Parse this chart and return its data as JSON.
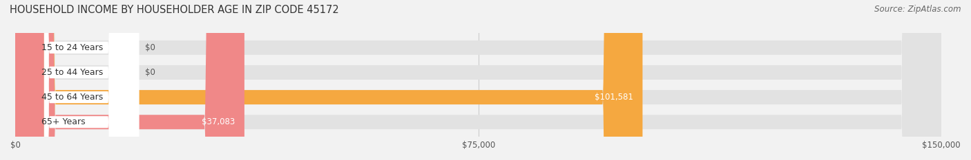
{
  "title": "HOUSEHOLD INCOME BY HOUSEHOLDER AGE IN ZIP CODE 45172",
  "source": "Source: ZipAtlas.com",
  "categories": [
    "15 to 24 Years",
    "25 to 44 Years",
    "45 to 64 Years",
    "65+ Years"
  ],
  "values": [
    0,
    0,
    101581,
    37083
  ],
  "bar_colors": [
    "#a8a8d8",
    "#f0a0b8",
    "#f5a840",
    "#f08888"
  ],
  "value_labels": [
    "$0",
    "$0",
    "$101,581",
    "$37,083"
  ],
  "xlim": [
    0,
    150000
  ],
  "xticks": [
    0,
    75000,
    150000
  ],
  "xtick_labels": [
    "$0",
    "$75,000",
    "$150,000"
  ],
  "background_color": "#f2f2f2",
  "bar_background_color": "#e2e2e2",
  "title_fontsize": 10.5,
  "source_fontsize": 8.5,
  "bar_height": 0.58,
  "label_bg_color": "#ffffff"
}
